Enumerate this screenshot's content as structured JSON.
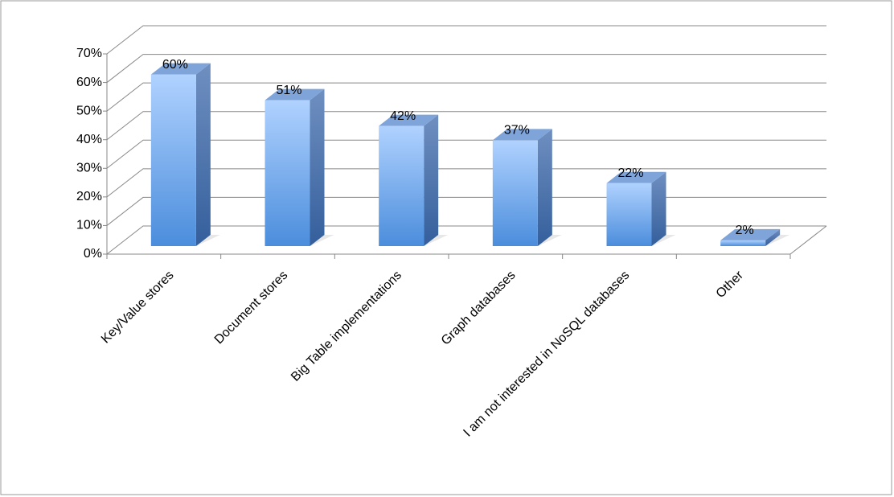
{
  "chart_data": {
    "type": "bar3d",
    "categories": [
      "Key/Value stores",
      "Document stores",
      "Big Table implementations",
      "Graph databases",
      "I am not interested in NoSQL databases",
      "Other"
    ],
    "values": [
      60,
      51,
      42,
      37,
      22,
      2
    ],
    "value_labels": [
      "60%",
      "51%",
      "42%",
      "37%",
      "22%",
      "2%"
    ],
    "color": "#5b9be6",
    "ylim": [
      0,
      70
    ],
    "yticks": [
      {
        "value": 0,
        "label": "0%"
      },
      {
        "value": 10,
        "label": "10%"
      },
      {
        "value": 20,
        "label": "20%"
      },
      {
        "value": 30,
        "label": "30%"
      },
      {
        "value": 40,
        "label": "40%"
      },
      {
        "value": 50,
        "label": "50%"
      },
      {
        "value": 60,
        "label": "60%"
      },
      {
        "value": 70,
        "label": "70%"
      }
    ],
    "grid": true
  }
}
